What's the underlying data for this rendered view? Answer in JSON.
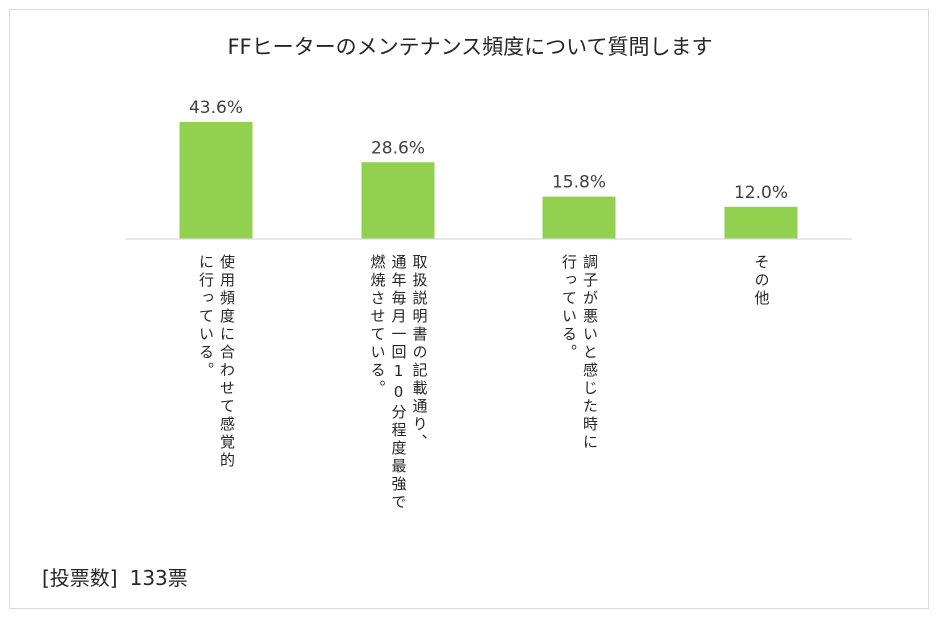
{
  "chart_data": {
    "type": "bar",
    "title": "FFヒーターのメンテナンス頻度について質問します",
    "categories": [
      "使用頻度に合わせて感覚的\nに行っている。",
      "取扱説明書の記載通り、\n通年毎月一回10分程度最強で\n燃焼させている。",
      "調子が悪いと感じた時に\n行っている。",
      "その他"
    ],
    "values": [
      43.6,
      28.6,
      15.8,
      12.0
    ],
    "value_labels": [
      "43.6%",
      "28.6%",
      "15.8%",
      "12.0%"
    ],
    "unit": "%",
    "ylim": [
      0,
      45
    ],
    "xlabel": "",
    "ylabel": "",
    "grid": false,
    "legend": "none",
    "bar_color": "#92d050",
    "axis_color": "#d9d9d9",
    "label_color": "#404040"
  },
  "footer": {
    "vote_label": "[投票数]",
    "vote_count": "133票"
  }
}
